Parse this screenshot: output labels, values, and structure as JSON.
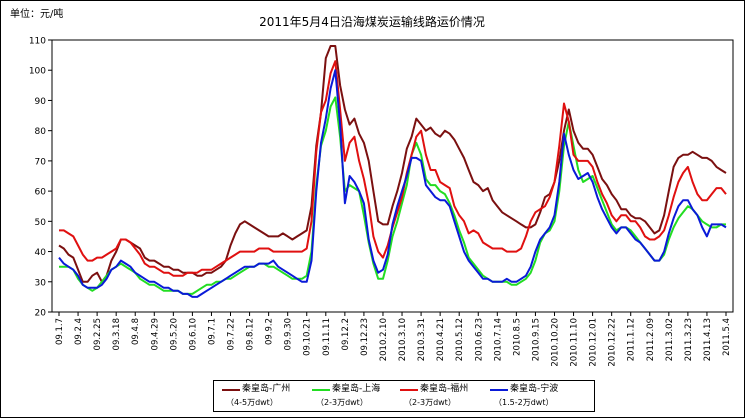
{
  "chart_data": {
    "type": "line",
    "title": "2011年5月4日沿海煤炭运输线路运价情况",
    "unit_label": "单位：元/吨",
    "ylim": [
      20,
      110
    ],
    "yticks": [
      20,
      30,
      40,
      50,
      60,
      70,
      80,
      90,
      100,
      110
    ],
    "grid": false,
    "legend_position": "bottom",
    "x_labels": [
      "09.1.7",
      "09.2.4",
      "09.2.25",
      "09.3.18",
      "09.4.8",
      "09.4.29",
      "09.5.20",
      "09.6.10",
      "09.7.1",
      "09.7.22",
      "09.8.12",
      "09.9.2",
      "09.9.30",
      "09.10.21",
      "09.11.11",
      "09.12.2",
      "09.12.23",
      "2010.2.10",
      "2010.3.10",
      "2010.3.31",
      "2010.4.21",
      "2010.5.12",
      "2010.6.23",
      "2010.7.14",
      "2010.8.5",
      "2010.9.15",
      "2010.10.20",
      "2010.11.10",
      "2010.12.01",
      "2010.12.22",
      "2011.1.12",
      "2011.2.09",
      "2011.3.02",
      "2011.3.23",
      "2011.4.13",
      "2011.5.4"
    ],
    "series": [
      {
        "name": "秦皇岛-广州",
        "sub": "（4-5万dwt）",
        "color": "#7b1010",
        "values": [
          42,
          41,
          39,
          38,
          34,
          30,
          30,
          32,
          33,
          30,
          32,
          37,
          40,
          44,
          44,
          43,
          42,
          41,
          38,
          37,
          37,
          36,
          35,
          35,
          34,
          34,
          33,
          33,
          33,
          32,
          32,
          33,
          33,
          34,
          35,
          37,
          42,
          46,
          49,
          50,
          49,
          48,
          47,
          46,
          45,
          45,
          45,
          46,
          45,
          44,
          45,
          46,
          47,
          55,
          75,
          86,
          104,
          108,
          108,
          95,
          87,
          82,
          84,
          79,
          76,
          70,
          60,
          50,
          49,
          49,
          55,
          60,
          66,
          74,
          78,
          84,
          82,
          80,
          81,
          79,
          78,
          80,
          79,
          77,
          74,
          71,
          67,
          63,
          62,
          60,
          61,
          57,
          55,
          53,
          52,
          51,
          50,
          49,
          48,
          48,
          49,
          53,
          58,
          59,
          63,
          70,
          80,
          87,
          80,
          76,
          74,
          74,
          72,
          68,
          64,
          62,
          59,
          57,
          54,
          54,
          52,
          51,
          51,
          50,
          48,
          46,
          47,
          52,
          60,
          68,
          71,
          72,
          72,
          73,
          72,
          71,
          71,
          70,
          68,
          67,
          66
        ]
      },
      {
        "name": "秦皇岛-上海",
        "sub": "（2-3万dwt）",
        "color": "#22dd22",
        "values": [
          35,
          35,
          35,
          34,
          31,
          29,
          28,
          27,
          28,
          30,
          32,
          34,
          35,
          36,
          35,
          34,
          33,
          31,
          30,
          29,
          29,
          28,
          27,
          27,
          27,
          27,
          26,
          26,
          26,
          27,
          28,
          29,
          29,
          30,
          30,
          31,
          31,
          32,
          33,
          34,
          35,
          35,
          36,
          36,
          35,
          35,
          34,
          33,
          32,
          31,
          31,
          31,
          32,
          40,
          62,
          75,
          80,
          88,
          91,
          78,
          60,
          62,
          61,
          60,
          52,
          43,
          36,
          31,
          31,
          37,
          45,
          50,
          56,
          62,
          72,
          76,
          72,
          64,
          62,
          62,
          60,
          59,
          56,
          52,
          47,
          43,
          38,
          36,
          34,
          32,
          31,
          30,
          30,
          30,
          30,
          29,
          29,
          30,
          31,
          33,
          37,
          43,
          46,
          47,
          50,
          60,
          75,
          83,
          75,
          67,
          63,
          64,
          65,
          61,
          57,
          53,
          49,
          47,
          48,
          48,
          47,
          45,
          43,
          41,
          39,
          37,
          37,
          39,
          44,
          48,
          51,
          53,
          55,
          54,
          52,
          50,
          49,
          48,
          48,
          49,
          49
        ]
      },
      {
        "name": "秦皇岛-福州",
        "sub": "（2-3万dwt）",
        "color": "#e01010",
        "values": [
          47,
          47,
          46,
          45,
          42,
          39,
          37,
          37,
          38,
          38,
          39,
          40,
          41,
          44,
          44,
          43,
          41,
          39,
          36,
          35,
          35,
          34,
          33,
          33,
          32,
          32,
          32,
          33,
          33,
          33,
          34,
          34,
          34,
          35,
          36,
          37,
          38,
          39,
          40,
          40,
          40,
          40,
          41,
          41,
          41,
          40,
          40,
          40,
          40,
          40,
          40,
          40,
          41,
          50,
          73,
          86,
          90,
          99,
          103,
          87,
          70,
          76,
          78,
          70,
          64,
          56,
          45,
          40,
          38,
          42,
          48,
          53,
          58,
          66,
          72,
          78,
          80,
          72,
          67,
          67,
          63,
          62,
          61,
          55,
          52,
          50,
          46,
          47,
          46,
          43,
          42,
          41,
          41,
          41,
          40,
          40,
          40,
          41,
          45,
          50,
          53,
          54,
          55,
          58,
          63,
          75,
          89,
          83,
          72,
          70,
          70,
          70,
          68,
          63,
          59,
          56,
          52,
          50,
          52,
          52,
          50,
          50,
          48,
          45,
          44,
          44,
          45,
          47,
          52,
          58,
          63,
          66,
          68,
          63,
          59,
          57,
          57,
          59,
          61,
          61,
          59
        ]
      },
      {
        "name": "秦皇岛-宁波",
        "sub": "（1.5-2万dwt）",
        "color": "#0a1ad8",
        "values": [
          38,
          36,
          35,
          34,
          32,
          29,
          28,
          28,
          28,
          29,
          31,
          34,
          35,
          37,
          36,
          35,
          33,
          32,
          31,
          30,
          30,
          29,
          28,
          28,
          27,
          27,
          26,
          26,
          25,
          25,
          26,
          27,
          28,
          29,
          30,
          31,
          32,
          33,
          34,
          35,
          35,
          35,
          36,
          36,
          36,
          37,
          35,
          34,
          33,
          32,
          31,
          30,
          30,
          37,
          60,
          76,
          84,
          94,
          100,
          82,
          56,
          65,
          63,
          60,
          56,
          44,
          37,
          33,
          34,
          39,
          49,
          55,
          60,
          65,
          71,
          71,
          70,
          62,
          60,
          58,
          57,
          57,
          55,
          50,
          45,
          40,
          37,
          35,
          33,
          31,
          31,
          30,
          30,
          30,
          31,
          30,
          30,
          31,
          32,
          35,
          40,
          44,
          46,
          48,
          52,
          63,
          79,
          72,
          67,
          64,
          65,
          66,
          63,
          58,
          54,
          51,
          48,
          46,
          48,
          48,
          46,
          44,
          43,
          41,
          39,
          37,
          37,
          40,
          46,
          51,
          55,
          57,
          57,
          54,
          52,
          48,
          45,
          49,
          49,
          49,
          48
        ]
      }
    ]
  }
}
